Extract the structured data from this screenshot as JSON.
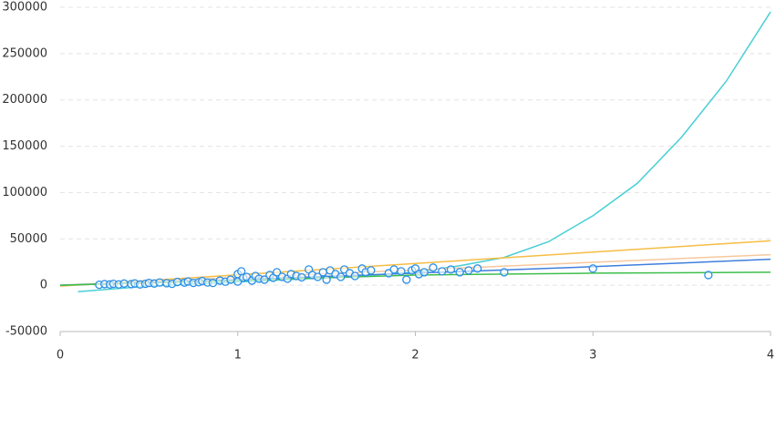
{
  "chart_data": {
    "type": "scatter",
    "xlim": [
      0,
      4
    ],
    "xticks": [
      0,
      1,
      2,
      3,
      4
    ],
    "ylim": [
      -50000,
      300000
    ],
    "yticks": [
      -50000,
      0,
      50000,
      100000,
      150000,
      200000,
      250000,
      300000
    ],
    "grid": true,
    "series": [
      {
        "kind": "points",
        "color": "#2b8fe6",
        "x": [
          0.22,
          0.25,
          0.28,
          0.3,
          0.33,
          0.36,
          0.4,
          0.42,
          0.45,
          0.48,
          0.5,
          0.53,
          0.56,
          0.6,
          0.63,
          0.66,
          0.7,
          0.72,
          0.75,
          0.78,
          0.8,
          0.83,
          0.86,
          0.9,
          0.93,
          0.96,
          1.0,
          1.0,
          1.02,
          1.03,
          1.05,
          1.08,
          1.1,
          1.12,
          1.15,
          1.18,
          1.2,
          1.22,
          1.25,
          1.28,
          1.3,
          1.33,
          1.36,
          1.4,
          1.42,
          1.45,
          1.48,
          1.5,
          1.52,
          1.55,
          1.58,
          1.6,
          1.63,
          1.66,
          1.7,
          1.72,
          1.75,
          1.85,
          1.88,
          1.92,
          1.95,
          1.98,
          2.0,
          2.02,
          2.05,
          2.1,
          2.15,
          2.2,
          2.25,
          2.3,
          2.35,
          2.5,
          3.0,
          3.65
        ],
        "values": [
          500,
          1200,
          800,
          1500,
          900,
          1800,
          1200,
          2000,
          800,
          1500,
          2500,
          1800,
          3000,
          2200,
          1500,
          3500,
          2800,
          4000,
          2500,
          3200,
          4500,
          3000,
          2500,
          5000,
          3800,
          6000,
          4000,
          12000,
          15000,
          8000,
          9000,
          5000,
          10000,
          7000,
          6000,
          11000,
          8000,
          14000,
          9000,
          7000,
          12000,
          10000,
          8500,
          17000,
          11000,
          9000,
          14000,
          6000,
          16000,
          12000,
          9000,
          17000,
          13000,
          10000,
          18000,
          14000,
          16000,
          13000,
          17000,
          15000,
          6000,
          16000,
          18000,
          12000,
          14000,
          19000,
          15000,
          17000,
          14000,
          16000,
          18000,
          14000,
          18000,
          11000
        ]
      },
      {
        "kind": "line",
        "color": "#48cfd6",
        "x": [
          0.1,
          0.5,
          1,
          1.5,
          2,
          2.25,
          2.5,
          2.75,
          3,
          3.25,
          3.5,
          3.75,
          4
        ],
        "values": [
          -7000,
          -1000,
          3500,
          8000,
          14000,
          21000,
          30000,
          47000,
          75000,
          110000,
          160000,
          220000,
          295000
        ]
      },
      {
        "kind": "line",
        "color": "#f5bd45",
        "x": [
          0,
          4
        ],
        "values": [
          -1000,
          48000
        ]
      },
      {
        "kind": "line",
        "color": "#f6c89e",
        "x": [
          0,
          4
        ],
        "values": [
          0,
          33000
        ]
      },
      {
        "kind": "line",
        "color": "#3f7fdc",
        "x": [
          0,
          1,
          2,
          3,
          4
        ],
        "values": [
          0,
          6000,
          13000,
          20000,
          28000
        ]
      },
      {
        "kind": "line",
        "color": "#3dbf4c",
        "x": [
          0,
          1,
          2,
          3,
          4
        ],
        "values": [
          0,
          5000,
          11000,
          13000,
          14000
        ]
      }
    ]
  }
}
